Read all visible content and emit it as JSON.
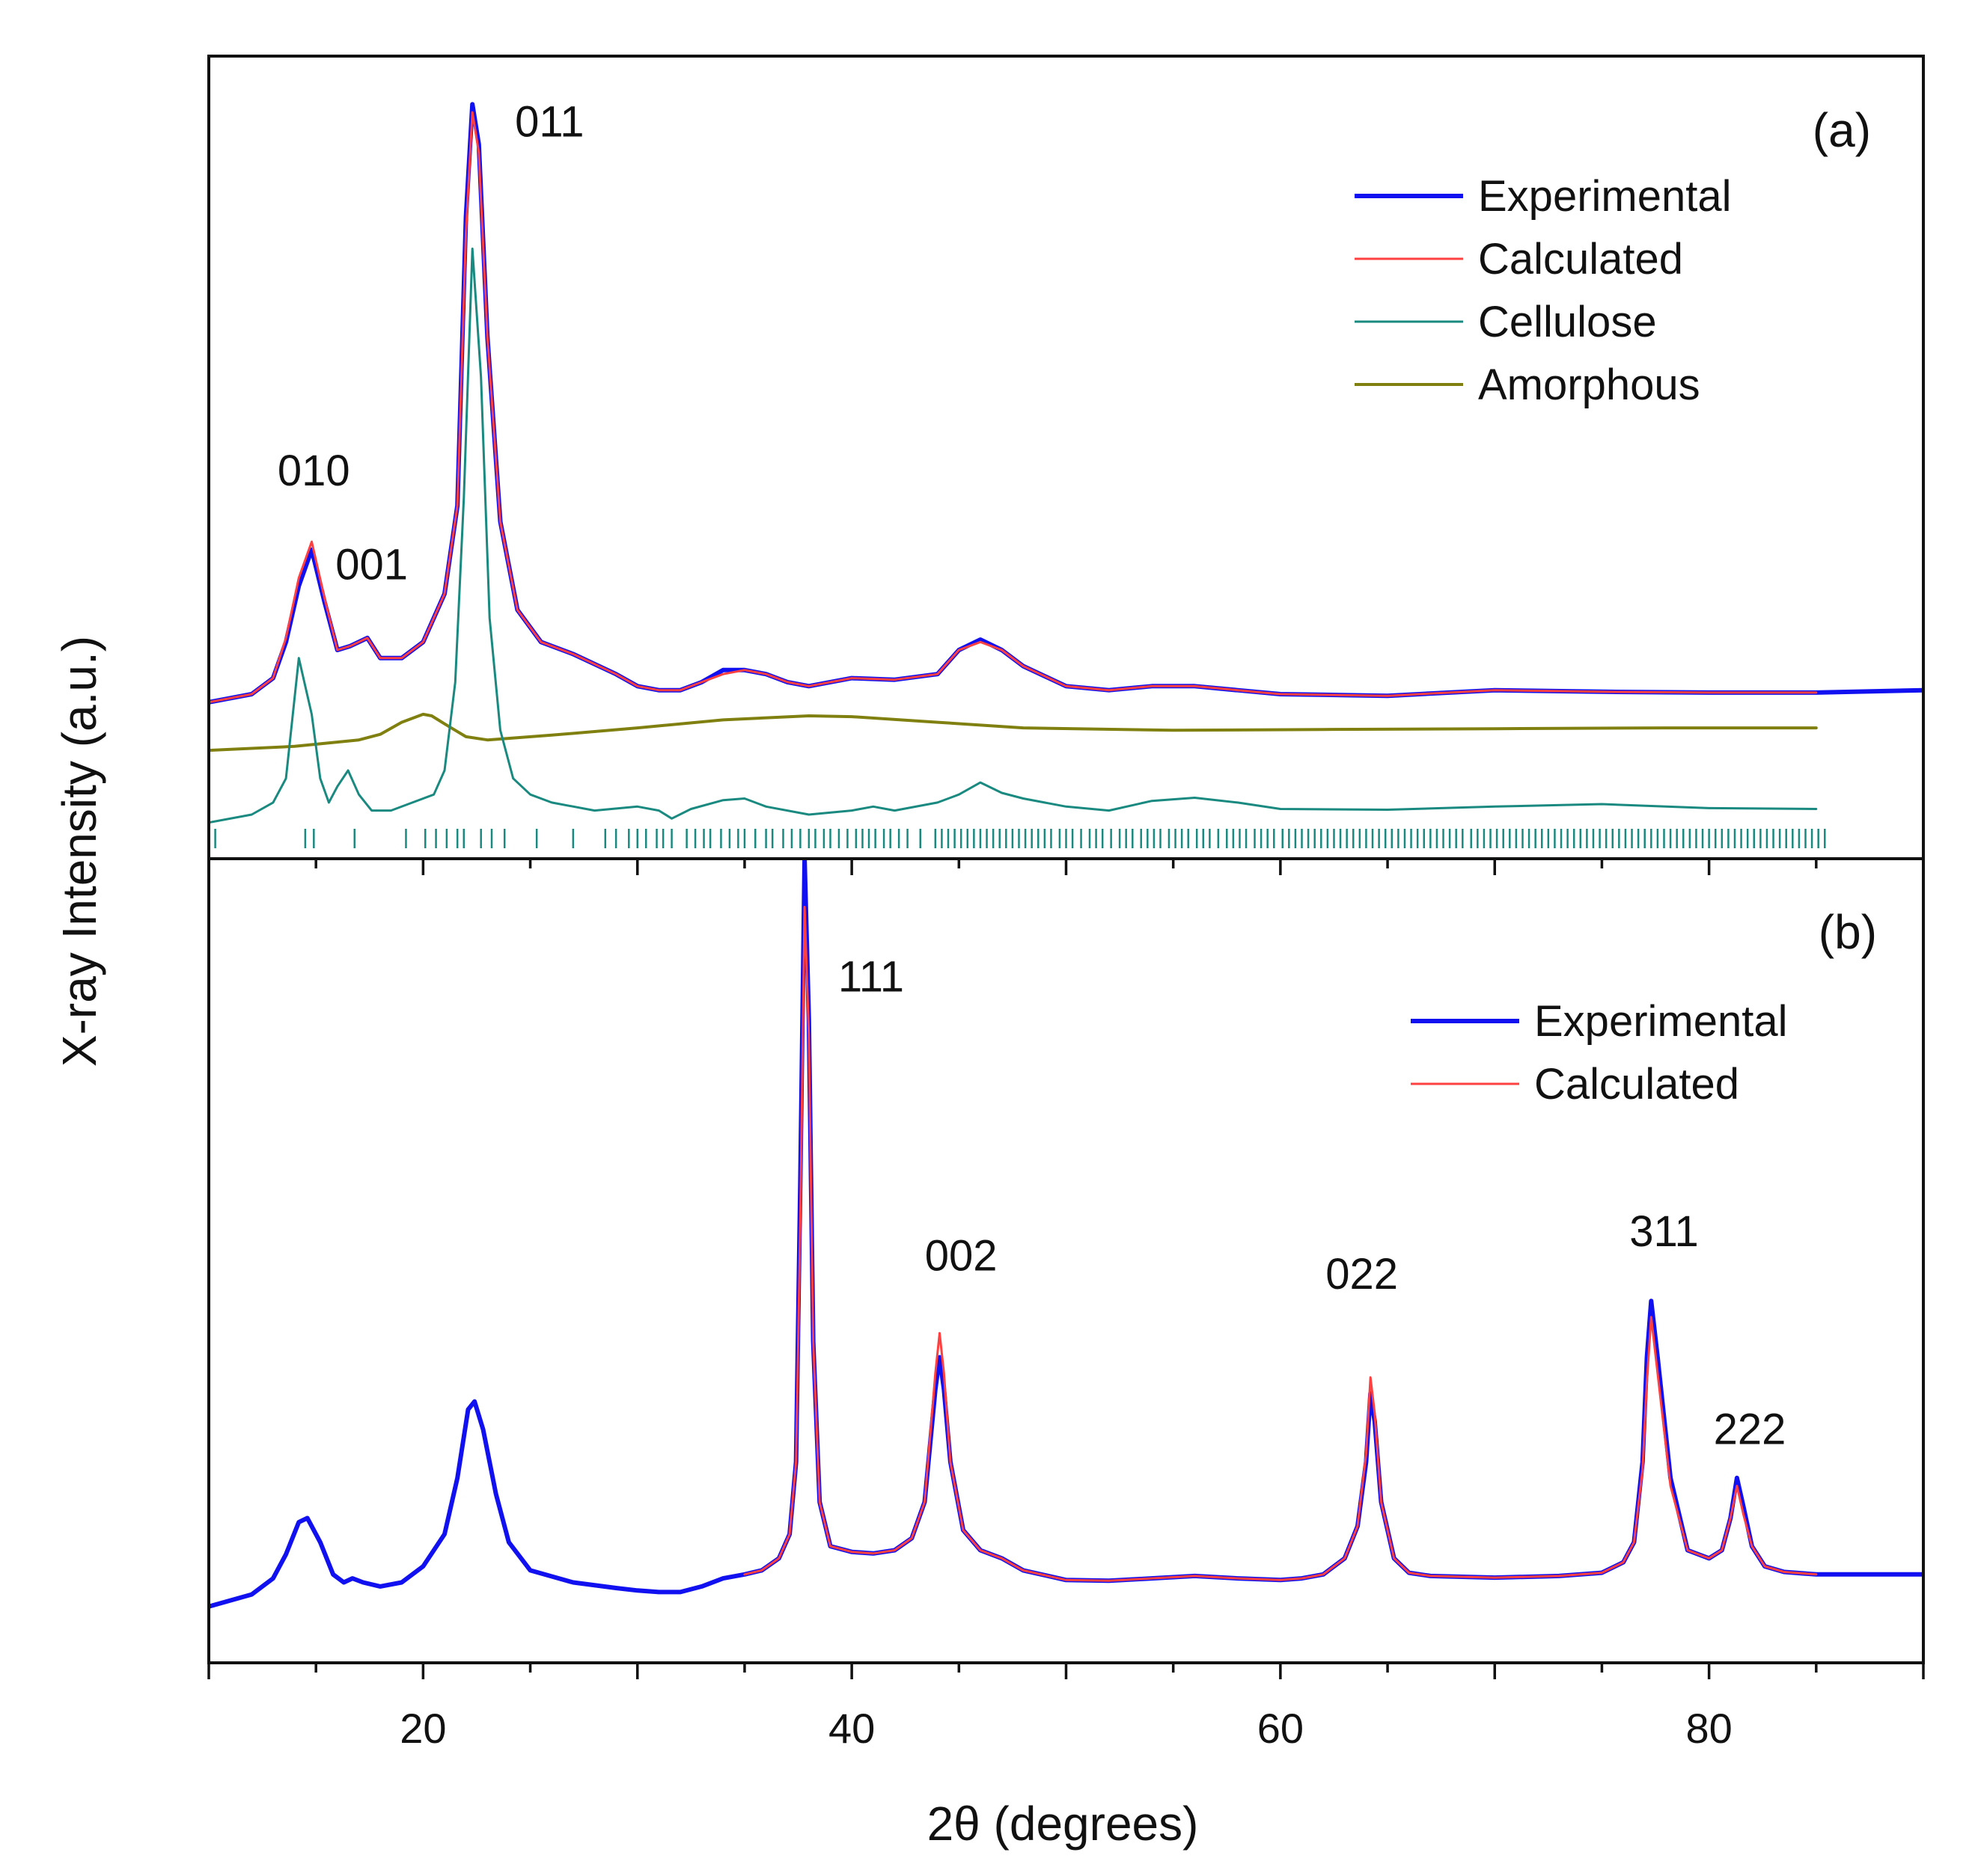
{
  "chart_data": {
    "type": "line",
    "xlabel": "2θ (degrees)",
    "ylabel": "X-ray Intensity (a.u.)",
    "xlim": [
      10,
      90
    ],
    "xticks": [
      20,
      40,
      60,
      80
    ],
    "xtick_labels": [
      "20",
      "40",
      "60",
      "80"
    ],
    "colors": {
      "experimental": "#1010f0",
      "calculated": "#ff4040",
      "cellulose": "#1a8a80",
      "amorphous": "#808010",
      "reflection_ticks": "#1a8a80",
      "axes": "#111111"
    },
    "panels": [
      {
        "label": "(a)",
        "ylim": [
          0,
          100
        ],
        "legend": [
          "Experimental",
          "Calculated",
          "Cellulose",
          "Amorphous"
        ],
        "legend_position": "top-right",
        "annotations": [
          {
            "text": "010",
            "x": 14.9,
            "y": 46.5
          },
          {
            "text": "001",
            "x": 17.6,
            "y": 34.8
          },
          {
            "text": "011",
            "x": 25.9,
            "y": 90.0
          }
        ],
        "series": [
          {
            "name": "Experimental",
            "key": "experimental",
            "width": 6,
            "x": [
              10,
              12,
              13,
              13.6,
              14.2,
              14.8,
              15.4,
              16,
              16.6,
              17.4,
              18,
              19,
              20,
              21,
              21.6,
              22.0,
              22.3,
              22.6,
              23,
              23.6,
              24.4,
              25.5,
              27,
              29,
              30,
              31,
              32,
              33,
              34,
              35,
              36,
              37,
              38,
              40,
              42,
              44,
              45,
              46,
              47,
              48,
              50,
              52,
              54,
              56,
              58,
              60,
              65,
              70,
              75,
              80,
              85,
              90
            ],
            "y": [
              19.5,
              20.5,
              22.5,
              27,
              34,
              38.5,
              32,
              26,
              26.5,
              27.5,
              25,
              25,
              27,
              33,
              44,
              80,
              94,
              89,
              65,
              42,
              31,
              27,
              25.5,
              23,
              21.5,
              21,
              21,
              22,
              23.5,
              23.5,
              23,
              22,
              21.5,
              22.5,
              22.3,
              23,
              26,
              27.3,
              26,
              24,
              21.5,
              21,
              21.5,
              21.5,
              21,
              20.5,
              20.3,
              21,
              20.8,
              20.7,
              20.7,
              21
            ]
          },
          {
            "name": "Calculated",
            "key": "calculated",
            "width": 3,
            "x": [
              10,
              12,
              13,
              13.6,
              14.2,
              14.8,
              15.4,
              16,
              16.6,
              17.4,
              18,
              19,
              20,
              21,
              21.6,
              22.0,
              22.3,
              22.6,
              23,
              23.6,
              24.4,
              25.5,
              27,
              29,
              30,
              31,
              32,
              33,
              34,
              35,
              36,
              37,
              38,
              40,
              42,
              44,
              45,
              46,
              47,
              48,
              50,
              52,
              54,
              56,
              58,
              60,
              65,
              70,
              75,
              80,
              85
            ],
            "y": [
              19.5,
              20.5,
              22.5,
              27.5,
              35,
              39.5,
              32.5,
              26,
              26.5,
              27.5,
              25,
              25,
              27,
              33,
              44,
              78,
              93,
              88,
              65,
              42,
              31,
              27,
              25.5,
              23,
              21.5,
              21,
              21,
              22,
              23,
              23.5,
              23,
              22,
              21.5,
              22.5,
              22.3,
              23,
              26,
              27,
              26,
              24,
              21.5,
              21,
              21.5,
              21.5,
              21,
              20.5,
              20.3,
              21,
              20.8,
              20.7,
              20.7
            ]
          },
          {
            "name": "Cellulose",
            "key": "cellulose",
            "width": 3,
            "x": [
              10,
              12,
              13,
              13.6,
              14.2,
              14.8,
              15.2,
              15.6,
              16.0,
              16.5,
              17.0,
              17.6,
              18.5,
              19.5,
              20.5,
              21.0,
              21.5,
              21.9,
              22.3,
              22.7,
              23.1,
              23.6,
              24.2,
              25,
              26,
              28,
              30,
              31,
              31.6,
              32.5,
              34,
              35,
              36,
              38,
              40,
              41,
              42,
              44,
              45,
              46,
              47,
              48,
              50,
              52,
              54,
              56,
              58,
              60,
              65,
              70,
              75,
              80,
              85
            ],
            "y": [
              4.5,
              5.5,
              7,
              10,
              25,
              18,
              10,
              7,
              9,
              11,
              8,
              6,
              6,
              7,
              8,
              11,
              22,
              45,
              76,
              60,
              30,
              16,
              10,
              8,
              7,
              6,
              6.5,
              6,
              5,
              6.2,
              7.3,
              7.5,
              6.5,
              5.5,
              6,
              6.5,
              6,
              7,
              8,
              9.5,
              8.2,
              7.5,
              6.5,
              6,
              7.2,
              7.6,
              7,
              6.2,
              6.1,
              6.5,
              6.8,
              6.3,
              6.2
            ]
          },
          {
            "name": "Amorphous",
            "key": "amorphous",
            "width": 4,
            "x": [
              10,
              14,
              17,
              18,
              19,
              20,
              20.4,
              21,
              21.5,
              22,
              23,
              26,
              30,
              34,
              38,
              40,
              44,
              48,
              55,
              62,
              70,
              78,
              85
            ],
            "y": [
              13.5,
              14,
              14.8,
              15.5,
              17,
              18,
              17.8,
              16.8,
              16,
              15.2,
              14.8,
              15.4,
              16.3,
              17.3,
              17.8,
              17.7,
              17,
              16.3,
              16,
              16.1,
              16.2,
              16.3,
              16.3
            ]
          }
        ]
      },
      {
        "label": "(b)",
        "ylim": [
          0,
          100
        ],
        "legend": [
          "Experimental",
          "Calculated"
        ],
        "legend_position": "top-right",
        "annotations": [
          {
            "text": "111",
            "x": 40.9,
            "y": 83.5
          },
          {
            "text": "002",
            "x": 45.1,
            "y": 48.8
          },
          {
            "text": "022",
            "x": 63.8,
            "y": 46.5
          },
          {
            "text": "311",
            "x": 77.9,
            "y": 51.8
          },
          {
            "text": "222",
            "x": 81.9,
            "y": 27.2
          }
        ],
        "series": [
          {
            "name": "Experimental",
            "key": "experimental",
            "width": 6,
            "x": [
              10,
              12,
              13,
              13.6,
              14.2,
              14.6,
              15.2,
              15.8,
              16.3,
              16.7,
              17.2,
              18,
              19,
              20,
              21,
              21.6,
              22.1,
              22.4,
              22.8,
              23.4,
              24,
              25,
              27,
              29,
              30,
              31,
              32,
              33,
              34,
              35,
              35.8,
              36.6,
              37.1,
              37.4,
              37.6,
              37.8,
              38.0,
              38.2,
              38.5,
              39,
              40,
              41,
              42,
              42.8,
              43.4,
              43.9,
              44.1,
              44.3,
              44.6,
              45.2,
              46,
              47,
              48,
              50,
              52,
              54,
              56,
              58,
              60,
              61,
              62,
              63,
              63.6,
              64.0,
              64.2,
              64.4,
              64.7,
              65.3,
              66,
              67,
              70,
              73,
              75,
              76,
              76.5,
              76.9,
              77.1,
              77.3,
              77.6,
              78.2,
              79,
              80,
              80.6,
              81.0,
              81.3,
              81.6,
              82.0,
              82.6,
              83.5,
              85,
              88,
              90
            ],
            "y": [
              7,
              8.5,
              10.5,
              13.5,
              17.5,
              18,
              15,
              11,
              10,
              10.5,
              10,
              9.5,
              10,
              12,
              16,
              23,
              31.5,
              32.5,
              29,
              21,
              15,
              11.5,
              10,
              9.3,
              9,
              8.8,
              8.8,
              9.5,
              10.5,
              11,
              11.5,
              13,
              16,
              25,
              60,
              100,
              80,
              40,
              20,
              14.5,
              13.8,
              13.6,
              14,
              15.5,
              20,
              34,
              38,
              34,
              25,
              16.5,
              14,
              13,
              11.5,
              10.3,
              10.2,
              10.5,
              10.8,
              10.5,
              10.3,
              10.5,
              11,
              13,
              17,
              25,
              33.5,
              30,
              20,
              13,
              11.2,
              10.8,
              10.6,
              10.8,
              11.2,
              12.5,
              15,
              25,
              38,
              45,
              38,
              23,
              14,
              13,
              14,
              18,
              23,
              19.5,
              14.5,
              12,
              11.3,
              11,
              11,
              11
            ]
          },
          {
            "name": "Calculated",
            "key": "calculated",
            "width": 3,
            "x": [
              35,
              35.8,
              36.6,
              37.1,
              37.4,
              37.6,
              37.8,
              38.0,
              38.2,
              38.5,
              39,
              40,
              41,
              42,
              42.8,
              43.4,
              43.9,
              44.1,
              44.3,
              44.6,
              45.2,
              46,
              47,
              48,
              50,
              52,
              54,
              56,
              58,
              60,
              61,
              62,
              63,
              63.6,
              64.0,
              64.2,
              64.4,
              64.7,
              65.3,
              66,
              67,
              70,
              73,
              75,
              76,
              76.5,
              76.9,
              77.1,
              77.3,
              77.6,
              78.2,
              79,
              80,
              80.6,
              81.0,
              81.3,
              81.6,
              82.0,
              82.6,
              83.5,
              85
            ],
            "y": [
              11,
              11.5,
              13,
              16,
              25,
              55,
              94,
              78,
              40,
              20,
              14.5,
              13.8,
              13.6,
              14,
              15.5,
              20,
              36,
              41,
              36,
              25,
              16.5,
              14,
              13,
              11.5,
              10.3,
              10.2,
              10.5,
              10.8,
              10.5,
              10.3,
              10.5,
              11,
              13,
              17,
              26,
              35.5,
              31,
              20,
              13,
              11.2,
              10.8,
              10.6,
              10.8,
              11.2,
              12.5,
              15,
              24,
              35,
              43,
              36,
              22,
              14,
              13,
              14,
              18,
              22,
              18.5,
              14.5,
              12,
              11.3,
              11
            ]
          }
        ]
      }
    ],
    "reflection_ticks_panel_a": [
      10.3,
      14.5,
      14.9,
      16.8,
      19.2,
      20.1,
      20.6,
      21.1,
      21.6,
      21.9,
      22.7,
      23.2,
      23.8,
      25.3,
      27.0,
      28.5,
      29.0,
      29.6,
      30.0,
      30.4,
      30.9,
      31.2,
      31.6,
      32.3,
      32.7,
      33.1,
      33.4,
      33.9,
      34.3,
      34.7,
      35.0,
      35.5,
      36.0,
      36.3,
      36.8,
      37.2,
      37.6,
      38.0,
      38.3,
      38.7,
      39.0,
      39.4,
      39.8,
      40.2,
      40.5,
      40.8,
      41.1,
      41.5,
      41.8,
      42.2,
      42.6,
      43.2,
      43.9,
      44.2,
      44.5,
      44.8,
      45.1,
      45.4,
      45.7,
      46.0,
      46.3,
      46.6,
      46.9,
      47.2,
      47.5,
      47.8,
      48.1,
      48.4,
      48.7,
      49.0,
      49.3,
      49.7,
      50.0,
      50.3,
      50.7,
      51.1,
      51.4,
      51.7,
      52.1,
      52.5,
      52.8,
      53.1,
      53.5,
      53.8,
      54.1,
      54.4,
      54.8,
      55.1,
      55.4,
      55.7,
      56.1,
      56.4,
      56.7,
      57.1,
      57.5,
      57.8,
      58.1,
      58.4,
      58.8,
      59.1,
      59.4,
      59.7,
      60.1,
      60.4,
      60.7,
      61.0,
      61.3,
      61.6,
      61.9,
      62.2,
      62.5,
      62.8,
      63.1,
      63.4,
      63.7,
      64.0,
      64.3,
      64.6,
      64.9,
      65.2,
      65.5,
      65.8,
      66.1,
      66.4,
      66.7,
      67.0,
      67.3,
      67.6,
      67.9,
      68.2,
      68.5,
      68.9,
      69.2,
      69.5,
      69.8,
      70.1,
      70.4,
      70.7,
      71.0,
      71.3,
      71.6,
      71.9,
      72.2,
      72.5,
      72.8,
      73.1,
      73.4,
      73.7,
      74.0,
      74.3,
      74.6,
      74.9,
      75.2,
      75.5,
      75.8,
      76.1,
      76.4,
      76.7,
      77.0,
      77.3,
      77.6,
      77.9,
      78.2,
      78.5,
      78.8,
      79.1,
      79.4,
      79.7,
      80.0,
      80.3,
      80.6,
      80.9,
      81.2,
      81.5,
      81.8,
      82.1,
      82.4,
      82.7,
      83.0,
      83.3,
      83.6,
      83.9,
      84.2,
      84.5,
      84.8,
      85.1,
      85.4
    ]
  }
}
